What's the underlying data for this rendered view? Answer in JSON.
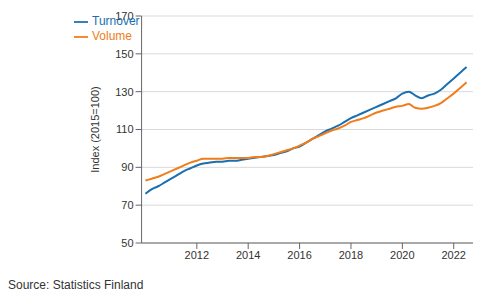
{
  "chart_data": {
    "type": "line",
    "y_label": "Index (2015=100)",
    "source": "Source: Statistics Finland",
    "x": [
      2010,
      2010.25,
      2010.5,
      2010.75,
      2011,
      2011.25,
      2011.5,
      2011.75,
      2012,
      2012.25,
      2012.5,
      2012.75,
      2013,
      2013.25,
      2013.5,
      2013.75,
      2014,
      2014.25,
      2014.5,
      2014.75,
      2015,
      2015.25,
      2015.5,
      2015.75,
      2016,
      2016.25,
      2016.5,
      2016.75,
      2017,
      2017.25,
      2017.5,
      2017.75,
      2018,
      2018.25,
      2018.5,
      2018.75,
      2019,
      2019.25,
      2019.5,
      2019.75,
      2020,
      2020.25,
      2020.5,
      2020.75,
      2021,
      2021.25,
      2021.5,
      2021.75,
      2022,
      2022.25,
      2022.5
    ],
    "series": [
      {
        "name": "Turnover",
        "color": "#1a6fb0",
        "values": [
          76,
          78.5,
          80,
          82,
          84,
          86,
          88,
          89.5,
          91,
          92,
          92.5,
          93,
          93,
          93.5,
          93.5,
          94,
          94.5,
          95,
          95.5,
          96,
          96.5,
          97.5,
          98.5,
          100,
          101,
          103,
          105,
          107,
          109,
          110.5,
          112,
          114,
          116,
          117.5,
          119,
          120.5,
          122,
          123.5,
          125,
          126.5,
          129,
          130,
          128,
          126.5,
          128,
          129,
          131,
          134,
          137,
          140,
          143
        ]
      },
      {
        "name": "Volume",
        "color": "#f07d1a",
        "values": [
          83,
          84,
          85,
          86.5,
          88,
          89.5,
          91,
          92.5,
          93.5,
          94.5,
          94.5,
          94.5,
          94.5,
          95,
          95,
          95,
          95,
          95.5,
          95.5,
          96,
          97,
          98,
          99,
          100,
          101.5,
          103,
          105,
          106.5,
          108,
          109.5,
          110.5,
          112,
          114,
          115,
          116,
          117.5,
          119,
          120,
          121,
          122,
          122.5,
          123.5,
          121.5,
          121,
          121.5,
          122.5,
          124,
          126.5,
          129,
          132,
          135
        ]
      }
    ],
    "xlim": [
      2009.85,
      2022.75
    ],
    "xticks": [
      2012,
      2014,
      2016,
      2018,
      2020,
      2022
    ],
    "ylim": [
      50,
      170
    ],
    "yticks": [
      50,
      70,
      90,
      110,
      130,
      150,
      170
    ],
    "grid": true,
    "legend": "top-left"
  }
}
